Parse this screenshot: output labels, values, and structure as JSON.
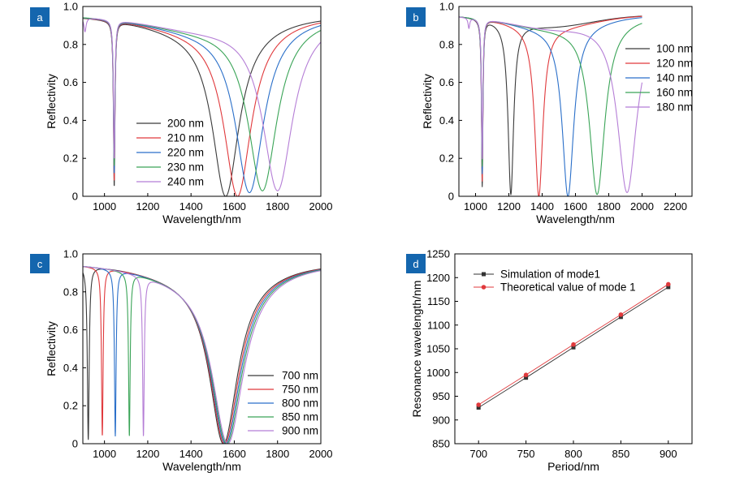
{
  "chart_data": [
    {
      "type": "line",
      "panel_label": "a",
      "xlabel": "Wavelength/nm",
      "ylabel": "Reflectivity",
      "xlim": [
        900,
        2000
      ],
      "ylim": [
        0,
        1.0
      ],
      "xticks": [
        1000,
        1200,
        1400,
        1600,
        1800,
        2000
      ],
      "yticks": [
        0,
        0.2,
        0.4,
        0.6,
        0.8,
        1.0
      ],
      "ytick_labels": [
        "0",
        "0.2",
        "0.4",
        "0.6",
        "0.8",
        "1.0"
      ],
      "legend_position": "center",
      "series": [
        {
          "name": "200 nm",
          "color": "#3a3a3a",
          "resonances": [
            {
              "center": 1560,
              "min": 0.0,
              "width": 75
            },
            {
              "center": 1045,
              "min": 0.05,
              "width": 4
            }
          ]
        },
        {
          "name": "210 nm",
          "color": "#e0393c",
          "resonances": [
            {
              "center": 1615,
              "min": 0.0,
              "width": 77
            },
            {
              "center": 1045,
              "min": 0.08,
              "width": 4
            }
          ]
        },
        {
          "name": "220 nm",
          "color": "#2a6fc9",
          "resonances": [
            {
              "center": 1670,
              "min": 0.02,
              "width": 79
            },
            {
              "center": 1045,
              "min": 0.12,
              "width": 4
            }
          ]
        },
        {
          "name": "230 nm",
          "color": "#3aa457",
          "resonances": [
            {
              "center": 1730,
              "min": 0.03,
              "width": 81
            },
            {
              "center": 1045,
              "min": 0.16,
              "width": 4
            }
          ]
        },
        {
          "name": "240 nm",
          "color": "#b57ed6",
          "resonances": [
            {
              "center": 1800,
              "min": 0.03,
              "width": 84
            },
            {
              "center": 1045,
              "min": 0.2,
              "width": 4
            },
            {
              "center": 910,
              "min": 0.88,
              "width": 6
            }
          ]
        }
      ]
    },
    {
      "type": "line",
      "panel_label": "b",
      "xlabel": "Wavelength/nm",
      "ylabel": "Reflectivity",
      "xlim": [
        900,
        2300
      ],
      "ylim": [
        0,
        1.0
      ],
      "xticks": [
        1000,
        1200,
        1400,
        1600,
        1800,
        2000,
        2200
      ],
      "yticks": [
        0,
        0.2,
        0.4,
        0.6,
        0.8,
        1.0
      ],
      "ytick_labels": [
        "0",
        "0.2",
        "0.4",
        "0.6",
        "0.8",
        "1.0"
      ],
      "legend_position": "right",
      "series": [
        {
          "name": "100 nm",
          "color": "#3a3a3a",
          "resonances": [
            {
              "center": 1212,
              "min": 0.01,
              "width": 20
            },
            {
              "center": 1040,
              "min": 0.05,
              "width": 5
            }
          ]
        },
        {
          "name": "120 nm",
          "color": "#e0393c",
          "resonances": [
            {
              "center": 1380,
              "min": 0.0,
              "width": 30
            },
            {
              "center": 1040,
              "min": 0.08,
              "width": 5
            }
          ]
        },
        {
          "name": "140 nm",
          "color": "#2a6fc9",
          "resonances": [
            {
              "center": 1555,
              "min": 0.0,
              "width": 42
            },
            {
              "center": 1040,
              "min": 0.12,
              "width": 5
            }
          ]
        },
        {
          "name": "160 nm",
          "color": "#3aa457",
          "resonances": [
            {
              "center": 1730,
              "min": 0.01,
              "width": 56
            },
            {
              "center": 1040,
              "min": 0.16,
              "width": 5
            }
          ]
        },
        {
          "name": "180 nm",
          "color": "#b57ed6",
          "resonances": [
            {
              "center": 1910,
              "min": 0.02,
              "width": 70
            },
            {
              "center": 1040,
              "min": 0.2,
              "width": 5
            },
            {
              "center": 960,
              "min": 0.9,
              "width": 6
            }
          ]
        }
      ]
    },
    {
      "type": "line",
      "panel_label": "c",
      "xlabel": "Wavelength/nm",
      "ylabel": "Reflectivity",
      "xlim": [
        900,
        2000
      ],
      "ylim": [
        0,
        1.0
      ],
      "xticks": [
        1000,
        1200,
        1400,
        1600,
        1800,
        2000
      ],
      "yticks": [
        0,
        0.2,
        0.4,
        0.6,
        0.8,
        1.0
      ],
      "ytick_labels": [
        "0",
        "0.2",
        "0.4",
        "0.6",
        "0.8",
        "1.0"
      ],
      "legend_position": "bottom-right",
      "series": [
        {
          "name": "700 nm",
          "color": "#3a3a3a",
          "resonances": [
            {
              "center": 1550,
              "min": 0.0,
              "width": 80
            },
            {
              "center": 925,
              "min": 0.02,
              "width": 5
            }
          ]
        },
        {
          "name": "750 nm",
          "color": "#e0393c",
          "resonances": [
            {
              "center": 1555,
              "min": 0.0,
              "width": 82
            },
            {
              "center": 990,
              "min": 0.04,
              "width": 4.5
            }
          ]
        },
        {
          "name": "800 nm",
          "color": "#2a6fc9",
          "resonances": [
            {
              "center": 1560,
              "min": 0.0,
              "width": 84
            },
            {
              "center": 1050,
              "min": 0.04,
              "width": 4.5
            }
          ]
        },
        {
          "name": "850 nm",
          "color": "#3aa457",
          "resonances": [
            {
              "center": 1565,
              "min": 0.0,
              "width": 86
            },
            {
              "center": 1115,
              "min": 0.04,
              "width": 4.5
            }
          ]
        },
        {
          "name": "900 nm",
          "color": "#b57ed6",
          "resonances": [
            {
              "center": 1570,
              "min": 0.0,
              "width": 88
            },
            {
              "center": 1180,
              "min": 0.04,
              "width": 4.5
            }
          ]
        }
      ]
    },
    {
      "type": "line",
      "panel_label": "d",
      "xlabel": "Period/nm",
      "ylabel": "Resonance wavelength/nm",
      "xlim": [
        675,
        925
      ],
      "ylim": [
        850,
        1250
      ],
      "xticks": [
        700,
        750,
        800,
        850,
        900
      ],
      "yticks": [
        850,
        900,
        950,
        1000,
        1050,
        1100,
        1150,
        1200,
        1250
      ],
      "ytick_labels": [
        "850",
        "900",
        "950",
        "1000",
        "1050",
        "1100",
        "1150",
        "1200",
        "1250"
      ],
      "legend_position": "top-left",
      "series": [
        {
          "name": "Simulation of mode1",
          "color": "#333333",
          "marker": "square",
          "x": [
            700,
            750,
            800,
            850,
            900
          ],
          "y": [
            926,
            989,
            1053,
            1117,
            1180
          ]
        },
        {
          "name": "Theoretical value of mode 1",
          "color": "#e0393c",
          "marker": "circle",
          "x": [
            700,
            750,
            800,
            850,
            900
          ],
          "y": [
            932,
            995,
            1059,
            1122,
            1186
          ]
        }
      ]
    }
  ]
}
